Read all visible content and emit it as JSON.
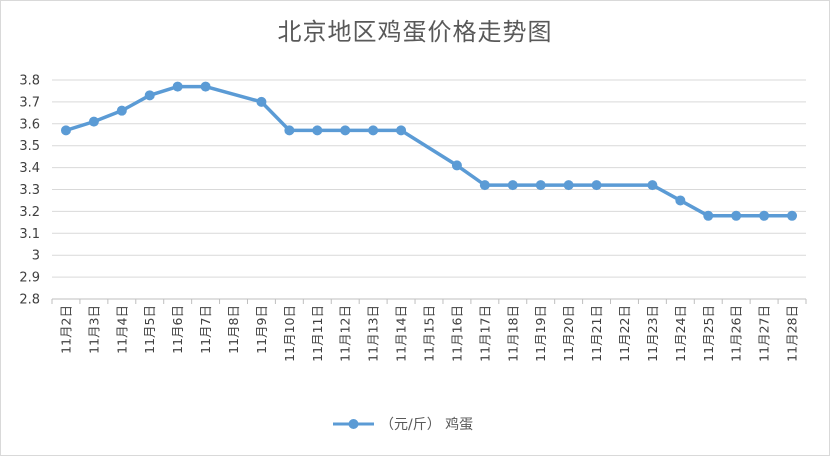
{
  "chart_data": {
    "type": "line",
    "title": "北京地区鸡蛋价格走势图",
    "xlabel": "",
    "ylabel": "",
    "categories": [
      "11月2日",
      "11月3日",
      "11月4日",
      "11月5日",
      "11月6日",
      "11月7日",
      "11月8日",
      "11月9日",
      "11月10日",
      "11月11日",
      "11月12日",
      "11月13日",
      "11月14日",
      "11月15日",
      "11月16日",
      "11月17日",
      "11月18日",
      "11月19日",
      "11月20日",
      "11月21日",
      "11月22日",
      "11月23日",
      "11月24日",
      "11月25日",
      "11月26日",
      "11月27日",
      "11月28日"
    ],
    "series": [
      {
        "name": "（元/斤） 鸡蛋",
        "color": "#5b9bd5",
        "values": [
          3.57,
          3.61,
          3.66,
          3.73,
          3.77,
          3.77,
          null,
          3.7,
          3.57,
          3.57,
          3.57,
          3.57,
          3.57,
          null,
          3.41,
          3.32,
          3.32,
          3.32,
          3.32,
          3.32,
          null,
          3.32,
          3.25,
          3.18,
          3.18,
          3.18,
          3.18
        ]
      }
    ],
    "ylim": [
      2.8,
      3.8
    ],
    "yticks": [
      "2.8",
      "2.9",
      "3",
      "3.1",
      "3.2",
      "3.3",
      "3.4",
      "3.5",
      "3.6",
      "3.7",
      "3.8"
    ],
    "grid": true,
    "legend": "bottom"
  }
}
